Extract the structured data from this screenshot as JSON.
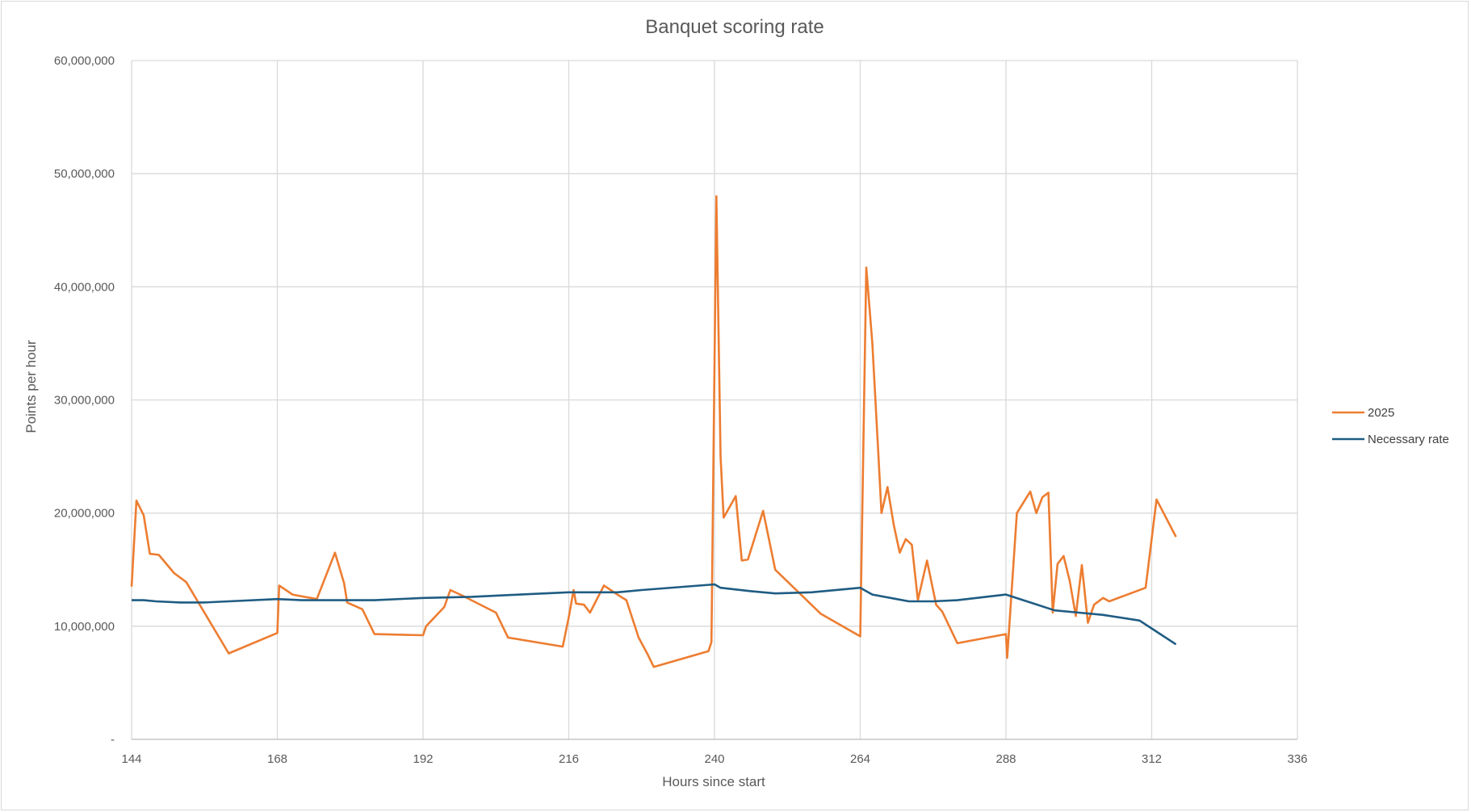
{
  "chart_data": {
    "type": "line",
    "title": "Banquet scoring rate",
    "xlabel": "Hours since start",
    "ylabel": "Points per hour",
    "xlim": [
      144,
      336
    ],
    "ylim": [
      0,
      60000000
    ],
    "x_ticks": [
      144,
      168,
      192,
      216,
      240,
      264,
      288,
      312,
      336
    ],
    "x_tick_labels": [
      "144",
      "168",
      "192",
      "216",
      "240",
      "264",
      "288",
      "312",
      "336"
    ],
    "y_ticks": [
      0,
      10000000,
      20000000,
      30000000,
      40000000,
      50000000,
      60000000
    ],
    "y_tick_labels": [
      "-",
      "10,000,000",
      "20,000,000",
      "30,000,000",
      "40,000,000",
      "50,000,000",
      "60,000,000"
    ],
    "grid": true,
    "legend_position": "right",
    "series": [
      {
        "name": "2025",
        "color": "#ED7D31",
        "points": [
          [
            144,
            13500000
          ],
          [
            144.8,
            21100000
          ],
          [
            146,
            19800000
          ],
          [
            147,
            16400000
          ],
          [
            148.5,
            16300000
          ],
          [
            151,
            14700000
          ],
          [
            153,
            13900000
          ],
          [
            160,
            7600000
          ],
          [
            168,
            9400000
          ],
          [
            168.3,
            13600000
          ],
          [
            170.5,
            12800000
          ],
          [
            174.5,
            12400000
          ],
          [
            177.5,
            16500000
          ],
          [
            179,
            13800000
          ],
          [
            179.5,
            12100000
          ],
          [
            182,
            11500000
          ],
          [
            184,
            9300000
          ],
          [
            192,
            9200000
          ],
          [
            192.5,
            10000000
          ],
          [
            195.5,
            11700000
          ],
          [
            196.5,
            13200000
          ],
          [
            198.5,
            12700000
          ],
          [
            204,
            11200000
          ],
          [
            206,
            9000000
          ],
          [
            215,
            8200000
          ],
          [
            216,
            10800000
          ],
          [
            216.8,
            13200000
          ],
          [
            217.2,
            12000000
          ],
          [
            218.5,
            11900000
          ],
          [
            219.5,
            11200000
          ],
          [
            221.8,
            13600000
          ],
          [
            224,
            12800000
          ],
          [
            225.5,
            12300000
          ],
          [
            227.5,
            9000000
          ],
          [
            229,
            7500000
          ],
          [
            230,
            6400000
          ],
          [
            239,
            7800000
          ],
          [
            239.5,
            8600000
          ],
          [
            240.3,
            48000000
          ],
          [
            241,
            25000000
          ],
          [
            241.5,
            19600000
          ],
          [
            243.5,
            21500000
          ],
          [
            244.5,
            15800000
          ],
          [
            245.5,
            15900000
          ],
          [
            248,
            20200000
          ],
          [
            250,
            15000000
          ],
          [
            257.5,
            11100000
          ],
          [
            264,
            9100000
          ],
          [
            265,
            41700000
          ],
          [
            266,
            35000000
          ],
          [
            267,
            25000000
          ],
          [
            267.5,
            20000000
          ],
          [
            268.5,
            22300000
          ],
          [
            269.5,
            19000000
          ],
          [
            270.5,
            16500000
          ],
          [
            271.5,
            17700000
          ],
          [
            272.5,
            17200000
          ],
          [
            273.5,
            12300000
          ],
          [
            275,
            15800000
          ],
          [
            276.5,
            11900000
          ],
          [
            277.5,
            11300000
          ],
          [
            280,
            8500000
          ],
          [
            288,
            9300000
          ],
          [
            288.2,
            7200000
          ],
          [
            289.8,
            20000000
          ],
          [
            292,
            21900000
          ],
          [
            293,
            20000000
          ],
          [
            294,
            21400000
          ],
          [
            295,
            21800000
          ],
          [
            295.7,
            11200000
          ],
          [
            296.5,
            15500000
          ],
          [
            297.5,
            16200000
          ],
          [
            298.5,
            14000000
          ],
          [
            299.5,
            10900000
          ],
          [
            300.5,
            15400000
          ],
          [
            301.5,
            10300000
          ],
          [
            302.5,
            11900000
          ],
          [
            304,
            12500000
          ],
          [
            305,
            12200000
          ],
          [
            311,
            13400000
          ],
          [
            312.8,
            21200000
          ],
          [
            316,
            17900000
          ]
        ]
      },
      {
        "name": "Necessary rate",
        "color": "#1F5C83",
        "points": [
          [
            144,
            12300000
          ],
          [
            146,
            12300000
          ],
          [
            148,
            12200000
          ],
          [
            152,
            12100000
          ],
          [
            156,
            12100000
          ],
          [
            160,
            12200000
          ],
          [
            168,
            12400000
          ],
          [
            172,
            12300000
          ],
          [
            176,
            12300000
          ],
          [
            180,
            12300000
          ],
          [
            184,
            12300000
          ],
          [
            192,
            12500000
          ],
          [
            200,
            12600000
          ],
          [
            208,
            12800000
          ],
          [
            216,
            13000000
          ],
          [
            224,
            13000000
          ],
          [
            228,
            13200000
          ],
          [
            240,
            13700000
          ],
          [
            241,
            13400000
          ],
          [
            246,
            13100000
          ],
          [
            250,
            12900000
          ],
          [
            256,
            13000000
          ],
          [
            264,
            13400000
          ],
          [
            266,
            12800000
          ],
          [
            270,
            12400000
          ],
          [
            272,
            12200000
          ],
          [
            276,
            12200000
          ],
          [
            280,
            12300000
          ],
          [
            288,
            12800000
          ],
          [
            292,
            12100000
          ],
          [
            296,
            11400000
          ],
          [
            300,
            11200000
          ],
          [
            304,
            11000000
          ],
          [
            310,
            10500000
          ],
          [
            312,
            9800000
          ],
          [
            316,
            8400000
          ]
        ]
      }
    ]
  }
}
